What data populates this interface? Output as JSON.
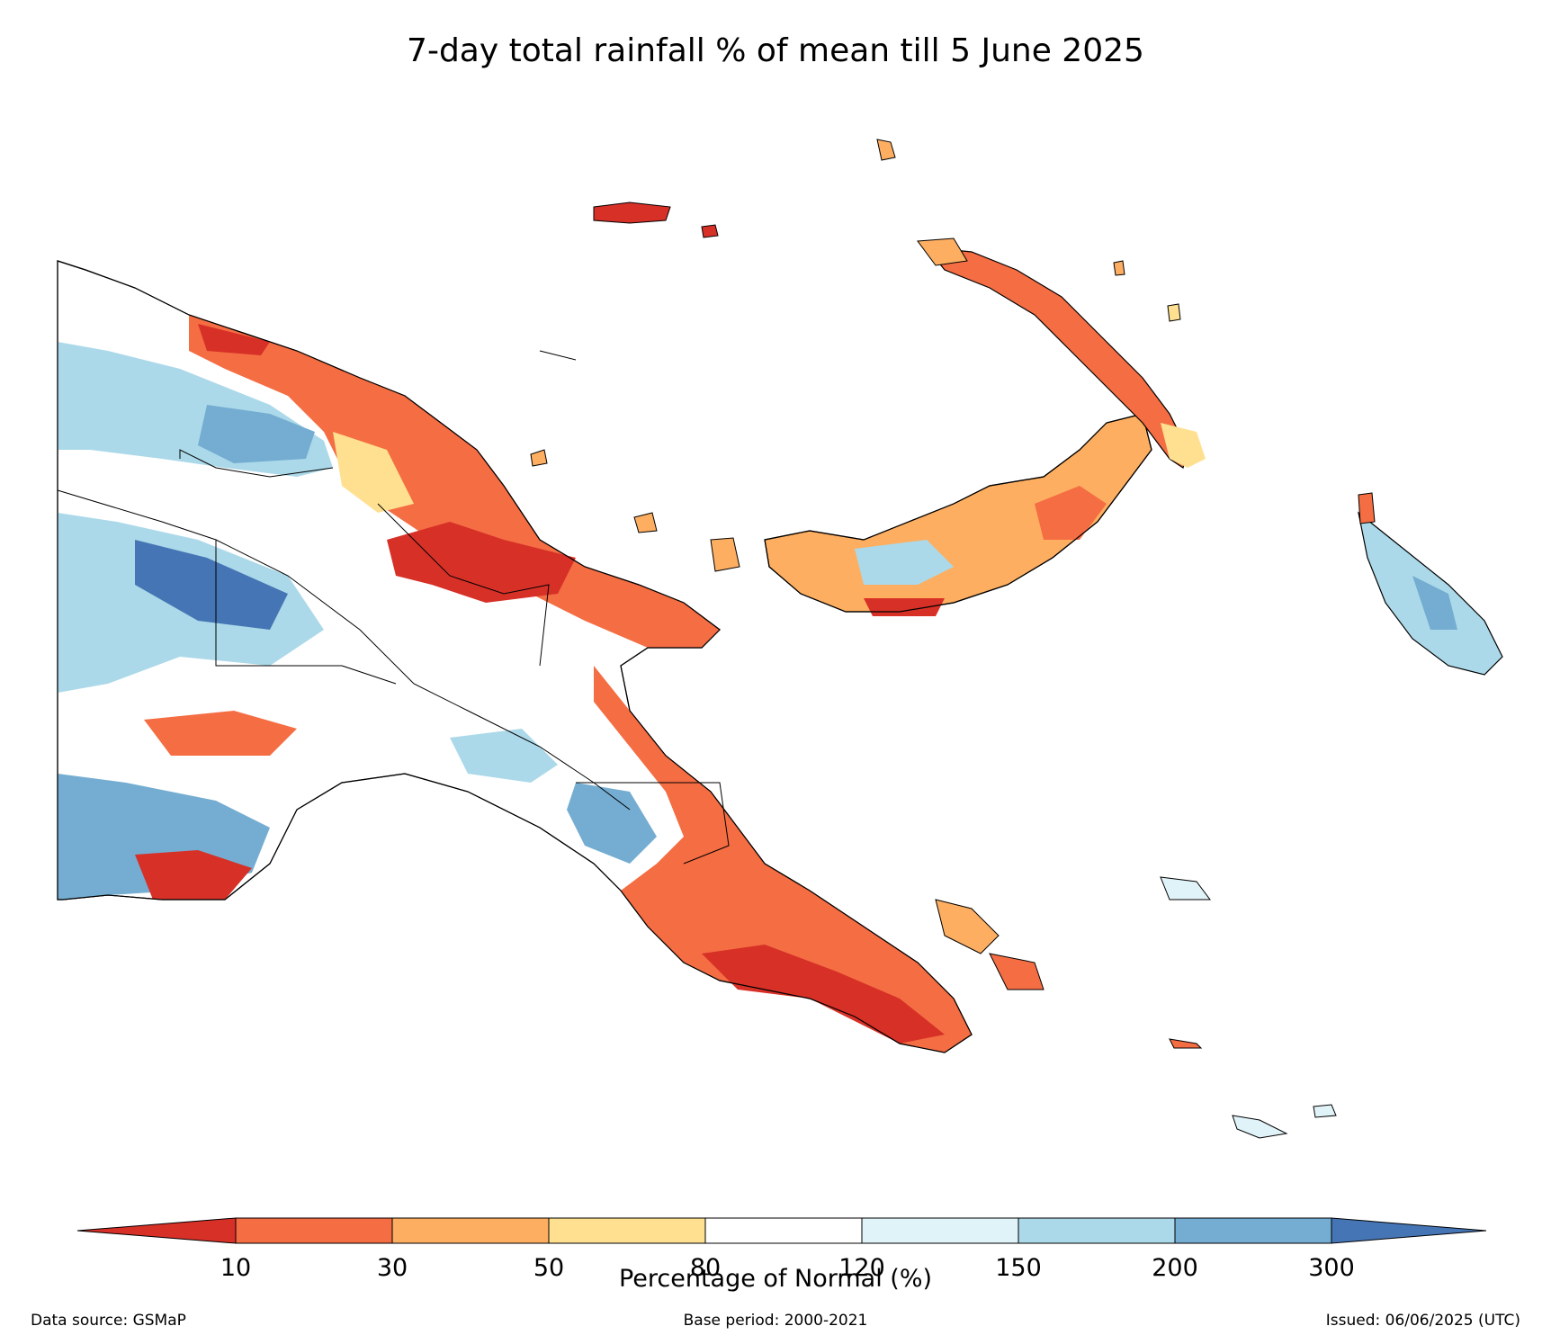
{
  "title": "7-day total rainfall % of mean till 5 June 2025",
  "colorbar": {
    "label": "Percentage of Normal (%)",
    "ticks": [
      "10",
      "30",
      "50",
      "80",
      "120",
      "150",
      "200",
      "300"
    ],
    "colors": [
      "#d73027",
      "#f46d43",
      "#fdae61",
      "#fee090",
      "#ffffff",
      "#e0f3f8",
      "#abd9e9",
      "#74add1",
      "#4575b4"
    ]
  },
  "footer": {
    "source": "Data source: GSMaP",
    "base_period": "Base period: 2000-2021",
    "issued": "Issued: 06/06/2025 (UTC)"
  }
}
